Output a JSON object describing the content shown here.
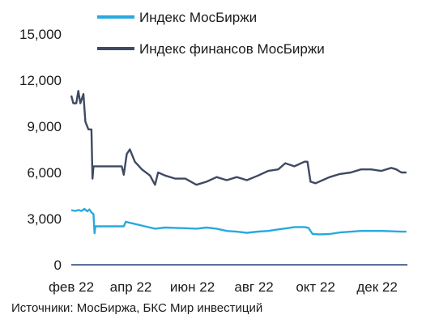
{
  "source_text": "Источники: МосБиржа, БКС Мир инвестиций",
  "chart_data": {
    "type": "line",
    "title": "",
    "xlabel": "",
    "ylabel": "",
    "ylim": [
      0,
      15000
    ],
    "y_ticks": [
      0,
      3000,
      6000,
      9000,
      12000,
      15000
    ],
    "y_tick_labels": [
      "0",
      "3,000",
      "6,000",
      "9,000",
      "12,000",
      "15,000"
    ],
    "x_range": [
      "2022-02-01",
      "2022-12-31"
    ],
    "x_tick_labels": [
      {
        "date": "2022-02-01",
        "label": "фев 22"
      },
      {
        "date": "2022-04-01",
        "label": "апр 22"
      },
      {
        "date": "2022-06-01",
        "label": "июн 22"
      },
      {
        "date": "2022-08-01",
        "label": "авг 22"
      },
      {
        "date": "2022-10-01",
        "label": "окт 22"
      },
      {
        "date": "2022-12-01",
        "label": "дек 22"
      }
    ],
    "grid": false,
    "legend_position": "top-left",
    "series": [
      {
        "name": "Индекс МосБиржи",
        "color": "#29a9e0",
        "points": [
          [
            "2022-02-01",
            3550
          ],
          [
            "2022-02-05",
            3500
          ],
          [
            "2022-02-08",
            3560
          ],
          [
            "2022-02-11",
            3500
          ],
          [
            "2022-02-14",
            3630
          ],
          [
            "2022-02-17",
            3480
          ],
          [
            "2022-02-19",
            3600
          ],
          [
            "2022-02-21",
            3400
          ],
          [
            "2022-02-23",
            3300
          ],
          [
            "2022-02-24",
            2050
          ],
          [
            "2022-02-25",
            2500
          ],
          [
            "2022-03-01",
            2500
          ],
          [
            "2022-03-10",
            2500
          ],
          [
            "2022-03-20",
            2500
          ],
          [
            "2022-03-25",
            2500
          ],
          [
            "2022-03-27",
            2800
          ],
          [
            "2022-03-30",
            2750
          ],
          [
            "2022-04-05",
            2650
          ],
          [
            "2022-04-15",
            2500
          ],
          [
            "2022-04-25",
            2350
          ],
          [
            "2022-05-05",
            2420
          ],
          [
            "2022-05-15",
            2400
          ],
          [
            "2022-05-25",
            2380
          ],
          [
            "2022-06-05",
            2350
          ],
          [
            "2022-06-15",
            2420
          ],
          [
            "2022-06-25",
            2350
          ],
          [
            "2022-07-05",
            2200
          ],
          [
            "2022-07-15",
            2150
          ],
          [
            "2022-07-25",
            2080
          ],
          [
            "2022-08-05",
            2160
          ],
          [
            "2022-08-15",
            2200
          ],
          [
            "2022-08-25",
            2300
          ],
          [
            "2022-09-05",
            2400
          ],
          [
            "2022-09-10",
            2450
          ],
          [
            "2022-09-20",
            2450
          ],
          [
            "2022-09-24",
            2400
          ],
          [
            "2022-09-28",
            2000
          ],
          [
            "2022-10-05",
            1980
          ],
          [
            "2022-10-15",
            2000
          ],
          [
            "2022-10-25",
            2100
          ],
          [
            "2022-11-05",
            2150
          ],
          [
            "2022-11-15",
            2200
          ],
          [
            "2022-11-25",
            2200
          ],
          [
            "2022-12-05",
            2200
          ],
          [
            "2022-12-15",
            2180
          ],
          [
            "2022-12-25",
            2150
          ],
          [
            "2022-12-30",
            2150
          ]
        ]
      },
      {
        "name": "Индекс финансов МосБиржи",
        "color": "#3f4a63",
        "points": [
          [
            "2022-02-01",
            11000
          ],
          [
            "2022-02-03",
            10500
          ],
          [
            "2022-02-06",
            10500
          ],
          [
            "2022-02-08",
            11300
          ],
          [
            "2022-02-10",
            10500
          ],
          [
            "2022-02-13",
            11100
          ],
          [
            "2022-02-15",
            9300
          ],
          [
            "2022-02-18",
            8800
          ],
          [
            "2022-02-21",
            8800
          ],
          [
            "2022-02-22",
            5600
          ],
          [
            "2022-02-23",
            6400
          ],
          [
            "2022-03-01",
            6400
          ],
          [
            "2022-03-10",
            6400
          ],
          [
            "2022-03-20",
            6400
          ],
          [
            "2022-03-23",
            6400
          ],
          [
            "2022-03-25",
            5850
          ],
          [
            "2022-03-28",
            7200
          ],
          [
            "2022-03-31",
            7500
          ],
          [
            "2022-04-05",
            6700
          ],
          [
            "2022-04-12",
            6200
          ],
          [
            "2022-04-20",
            5800
          ],
          [
            "2022-04-25",
            5200
          ],
          [
            "2022-04-28",
            6000
          ],
          [
            "2022-05-05",
            5800
          ],
          [
            "2022-05-15",
            5600
          ],
          [
            "2022-05-25",
            5600
          ],
          [
            "2022-06-05",
            5200
          ],
          [
            "2022-06-15",
            5400
          ],
          [
            "2022-06-25",
            5700
          ],
          [
            "2022-07-05",
            5500
          ],
          [
            "2022-07-15",
            5700
          ],
          [
            "2022-07-25",
            5500
          ],
          [
            "2022-08-05",
            5800
          ],
          [
            "2022-08-15",
            6100
          ],
          [
            "2022-08-25",
            6200
          ],
          [
            "2022-09-01",
            6600
          ],
          [
            "2022-09-10",
            6400
          ],
          [
            "2022-09-20",
            6700
          ],
          [
            "2022-09-23",
            6700
          ],
          [
            "2022-09-26",
            5400
          ],
          [
            "2022-10-01",
            5300
          ],
          [
            "2022-10-08",
            5500
          ],
          [
            "2022-10-15",
            5700
          ],
          [
            "2022-10-25",
            5900
          ],
          [
            "2022-11-05",
            6000
          ],
          [
            "2022-11-15",
            6200
          ],
          [
            "2022-11-25",
            6200
          ],
          [
            "2022-12-05",
            6100
          ],
          [
            "2022-12-15",
            6300
          ],
          [
            "2022-12-20",
            6200
          ],
          [
            "2022-12-25",
            6000
          ],
          [
            "2022-12-30",
            6000
          ]
        ]
      }
    ]
  }
}
